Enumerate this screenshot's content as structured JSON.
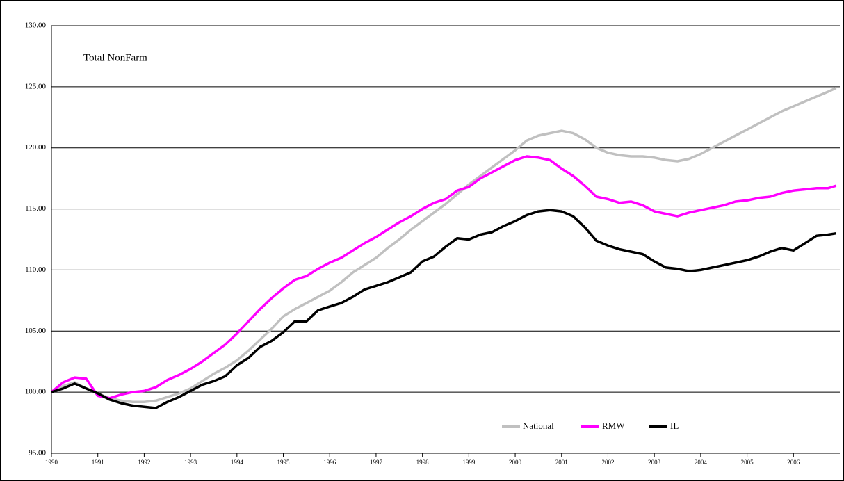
{
  "chart_data": {
    "type": "line",
    "title": "Total NonFarm",
    "x": [
      1990,
      1990.25,
      1990.5,
      1990.75,
      1991,
      1991.25,
      1991.5,
      1991.75,
      1992,
      1992.25,
      1992.5,
      1992.75,
      1993,
      1993.25,
      1993.5,
      1993.75,
      1994,
      1994.25,
      1994.5,
      1994.75,
      1995,
      1995.25,
      1995.5,
      1995.75,
      1996,
      1996.25,
      1996.5,
      1996.75,
      1997,
      1997.25,
      1997.5,
      1997.75,
      1998,
      1998.25,
      1998.5,
      1998.75,
      1999,
      1999.25,
      1999.5,
      1999.75,
      2000,
      2000.25,
      2000.5,
      2000.75,
      2001,
      2001.25,
      2001.5,
      2001.75,
      2002,
      2002.25,
      2002.5,
      2002.75,
      2003,
      2003.25,
      2003.5,
      2003.75,
      2004,
      2004.25,
      2004.5,
      2004.75,
      2005,
      2005.25,
      2005.5,
      2005.75,
      2006,
      2006.25,
      2006.5,
      2006.75,
      2006.92
    ],
    "series": [
      {
        "name": "National",
        "color": "#c0c0c0",
        "values": [
          100,
          100.5,
          100.8,
          100.3,
          99.9,
          99.5,
          99.3,
          99.2,
          99.2,
          99.3,
          99.6,
          99.9,
          100.3,
          100.9,
          101.5,
          102.0,
          102.6,
          103.4,
          104.3,
          105.2,
          106.2,
          106.8,
          107.3,
          107.8,
          108.3,
          109.0,
          109.8,
          110.4,
          111.0,
          111.8,
          112.5,
          113.3,
          114.0,
          114.7,
          115.4,
          116.2,
          117.0,
          117.7,
          118.4,
          119.1,
          119.8,
          120.6,
          121.0,
          121.2,
          121.4,
          121.2,
          120.7,
          120.0,
          119.6,
          119.4,
          119.3,
          119.3,
          119.2,
          119.0,
          118.9,
          119.1,
          119.5,
          120.0,
          120.5,
          121.0,
          121.5,
          122.0,
          122.5,
          123.0,
          123.4,
          123.8,
          124.2,
          124.6,
          124.9
        ]
      },
      {
        "name": "RMW",
        "color": "#ff00ff",
        "values": [
          100,
          100.8,
          101.2,
          101.1,
          99.7,
          99.5,
          99.8,
          100.0,
          100.1,
          100.4,
          101.0,
          101.4,
          101.9,
          102.5,
          103.2,
          103.9,
          104.8,
          105.8,
          106.8,
          107.7,
          108.5,
          109.2,
          109.5,
          110.1,
          110.6,
          111.0,
          111.6,
          112.2,
          112.7,
          113.3,
          113.9,
          114.4,
          115.0,
          115.5,
          115.8,
          116.5,
          116.8,
          117.5,
          118.0,
          118.5,
          119.0,
          119.3,
          119.2,
          119.0,
          118.3,
          117.7,
          116.9,
          116.0,
          115.8,
          115.5,
          115.6,
          115.3,
          114.8,
          114.6,
          114.4,
          114.7,
          114.9,
          115.1,
          115.3,
          115.6,
          115.7,
          115.9,
          116.0,
          116.3,
          116.5,
          116.6,
          116.7,
          116.7,
          116.9
        ]
      },
      {
        "name": "IL",
        "color": "#000000",
        "values": [
          100,
          100.3,
          100.7,
          100.3,
          99.9,
          99.4,
          99.1,
          98.9,
          98.8,
          98.7,
          99.2,
          99.6,
          100.1,
          100.6,
          100.9,
          101.3,
          102.2,
          102.8,
          103.7,
          104.2,
          104.9,
          105.8,
          105.8,
          106.7,
          107.0,
          107.3,
          107.8,
          108.4,
          108.7,
          109.0,
          109.4,
          109.8,
          110.7,
          111.1,
          111.9,
          112.6,
          112.5,
          112.9,
          113.1,
          113.6,
          114.0,
          114.5,
          114.8,
          114.9,
          114.8,
          114.4,
          113.5,
          112.4,
          112.0,
          111.7,
          111.5,
          111.3,
          110.7,
          110.2,
          110.1,
          109.9,
          110.0,
          110.2,
          110.4,
          110.6,
          110.8,
          111.1,
          111.5,
          111.8,
          111.6,
          112.2,
          112.8,
          112.9,
          113.0
        ]
      }
    ],
    "xlim": [
      1990,
      2007
    ],
    "xticks": [
      1990,
      1991,
      1992,
      1993,
      1994,
      1995,
      1996,
      1997,
      1998,
      1999,
      2000,
      2001,
      2002,
      2003,
      2004,
      2005,
      2006
    ],
    "ylim": [
      95,
      130
    ],
    "yticks": [
      {
        "value": 95,
        "label": "95.00"
      },
      {
        "value": 100,
        "label": "100.00"
      },
      {
        "value": 105,
        "label": "105.00"
      },
      {
        "value": 110,
        "label": "110.00"
      },
      {
        "value": 115,
        "label": "115.00"
      },
      {
        "value": 120,
        "label": "120.00"
      },
      {
        "value": 125,
        "label": "125.00"
      },
      {
        "value": 130,
        "label": "130.00"
      }
    ],
    "grid": true,
    "legend": "bottom"
  }
}
